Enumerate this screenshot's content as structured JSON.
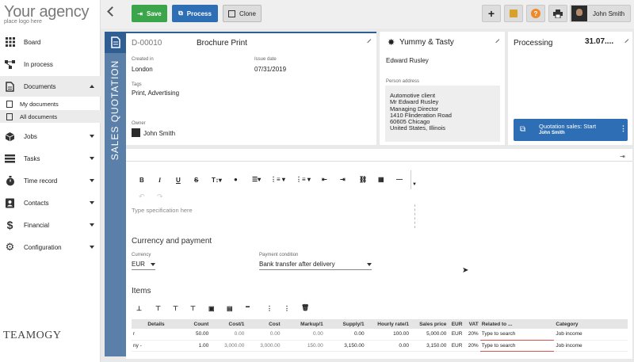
{
  "logo": {
    "title": "Your agency",
    "subtitle": "place logo here",
    "brand": "TEAMOGY"
  },
  "sidebar": {
    "items": [
      {
        "label": "Board",
        "icon": "grid-icon"
      },
      {
        "label": "In process",
        "icon": "flow-icon"
      },
      {
        "label": "Documents",
        "icon": "document-icon"
      },
      {
        "label": "Jobs",
        "icon": "cube-icon"
      },
      {
        "label": "Tasks",
        "icon": "tasks-icon"
      },
      {
        "label": "Time record",
        "icon": "stopwatch-icon"
      },
      {
        "label": "Contacts",
        "icon": "contacts-icon"
      },
      {
        "label": "Financial",
        "icon": "dollar-icon"
      },
      {
        "label": "Configuration",
        "icon": "gear-icon"
      }
    ],
    "documents_sub": [
      {
        "label": "My documents"
      },
      {
        "label": "All documents"
      }
    ]
  },
  "toolbar": {
    "save_label": "Save",
    "process_label": "Process",
    "clone_label": "Clone",
    "user_name": "John Smith",
    "help_label": "?"
  },
  "document": {
    "type_label": "SALES QUOTATION",
    "id": "D-00010",
    "title": "Brochure Print",
    "created_in_label": "Created in",
    "created_in": "London",
    "issue_date_label": "Issue date",
    "issue_date": "07/31/2019",
    "tags_label": "Tags",
    "tags": "Print, Advertising",
    "owner_label": "Owner",
    "owner": "John Smith"
  },
  "client": {
    "name": "Yummy & Tasty",
    "contact": "Edward Rusley",
    "address_label": "Person address",
    "address_lines": [
      "Automotive client",
      "Mr  Edward Rusley",
      "Managing Director",
      "1410  Flinderation Road",
      "60605 Chicago",
      "United States, Illinois"
    ]
  },
  "status": {
    "label": "Processing",
    "date": "31.07....",
    "process_title": "Quotation sales: Start",
    "process_user": "John Smith"
  },
  "editor": {
    "placeholder": "Type specification here"
  },
  "currency": {
    "section_title": "Currency and payment",
    "currency_label": "Currency",
    "currency_value": "EUR",
    "payment_label": "Payment condition",
    "payment_value": "Bank transfer after delivery"
  },
  "items": {
    "section_title": "Items",
    "headers": [
      "Details",
      "Count",
      "Cost/1",
      "Cost",
      "Markup/1",
      "Supply/1",
      "Hourly rate/1",
      "Sales price",
      "EUR",
      "VAT",
      "Related to ...",
      "Category"
    ],
    "rows": [
      {
        "details": "r",
        "count": "50.00",
        "cost1": "0.00",
        "cost": "0.00",
        "markup": "0.00",
        "supply": "0.00",
        "hourly": "100.00",
        "sales": "5,000.00",
        "cur": "EUR",
        "vat": "20%",
        "related": "Type to search",
        "category": "Job income"
      },
      {
        "details": "ny -",
        "count": "1.00",
        "cost1": "3,000.00",
        "cost": "3,000.00",
        "markup": "150.00",
        "supply": "3,150.00",
        "hourly": "0.00",
        "sales": "3,150.00",
        "cur": "EUR",
        "vat": "20%",
        "related": "Type to search",
        "category": "Job income"
      }
    ]
  }
}
